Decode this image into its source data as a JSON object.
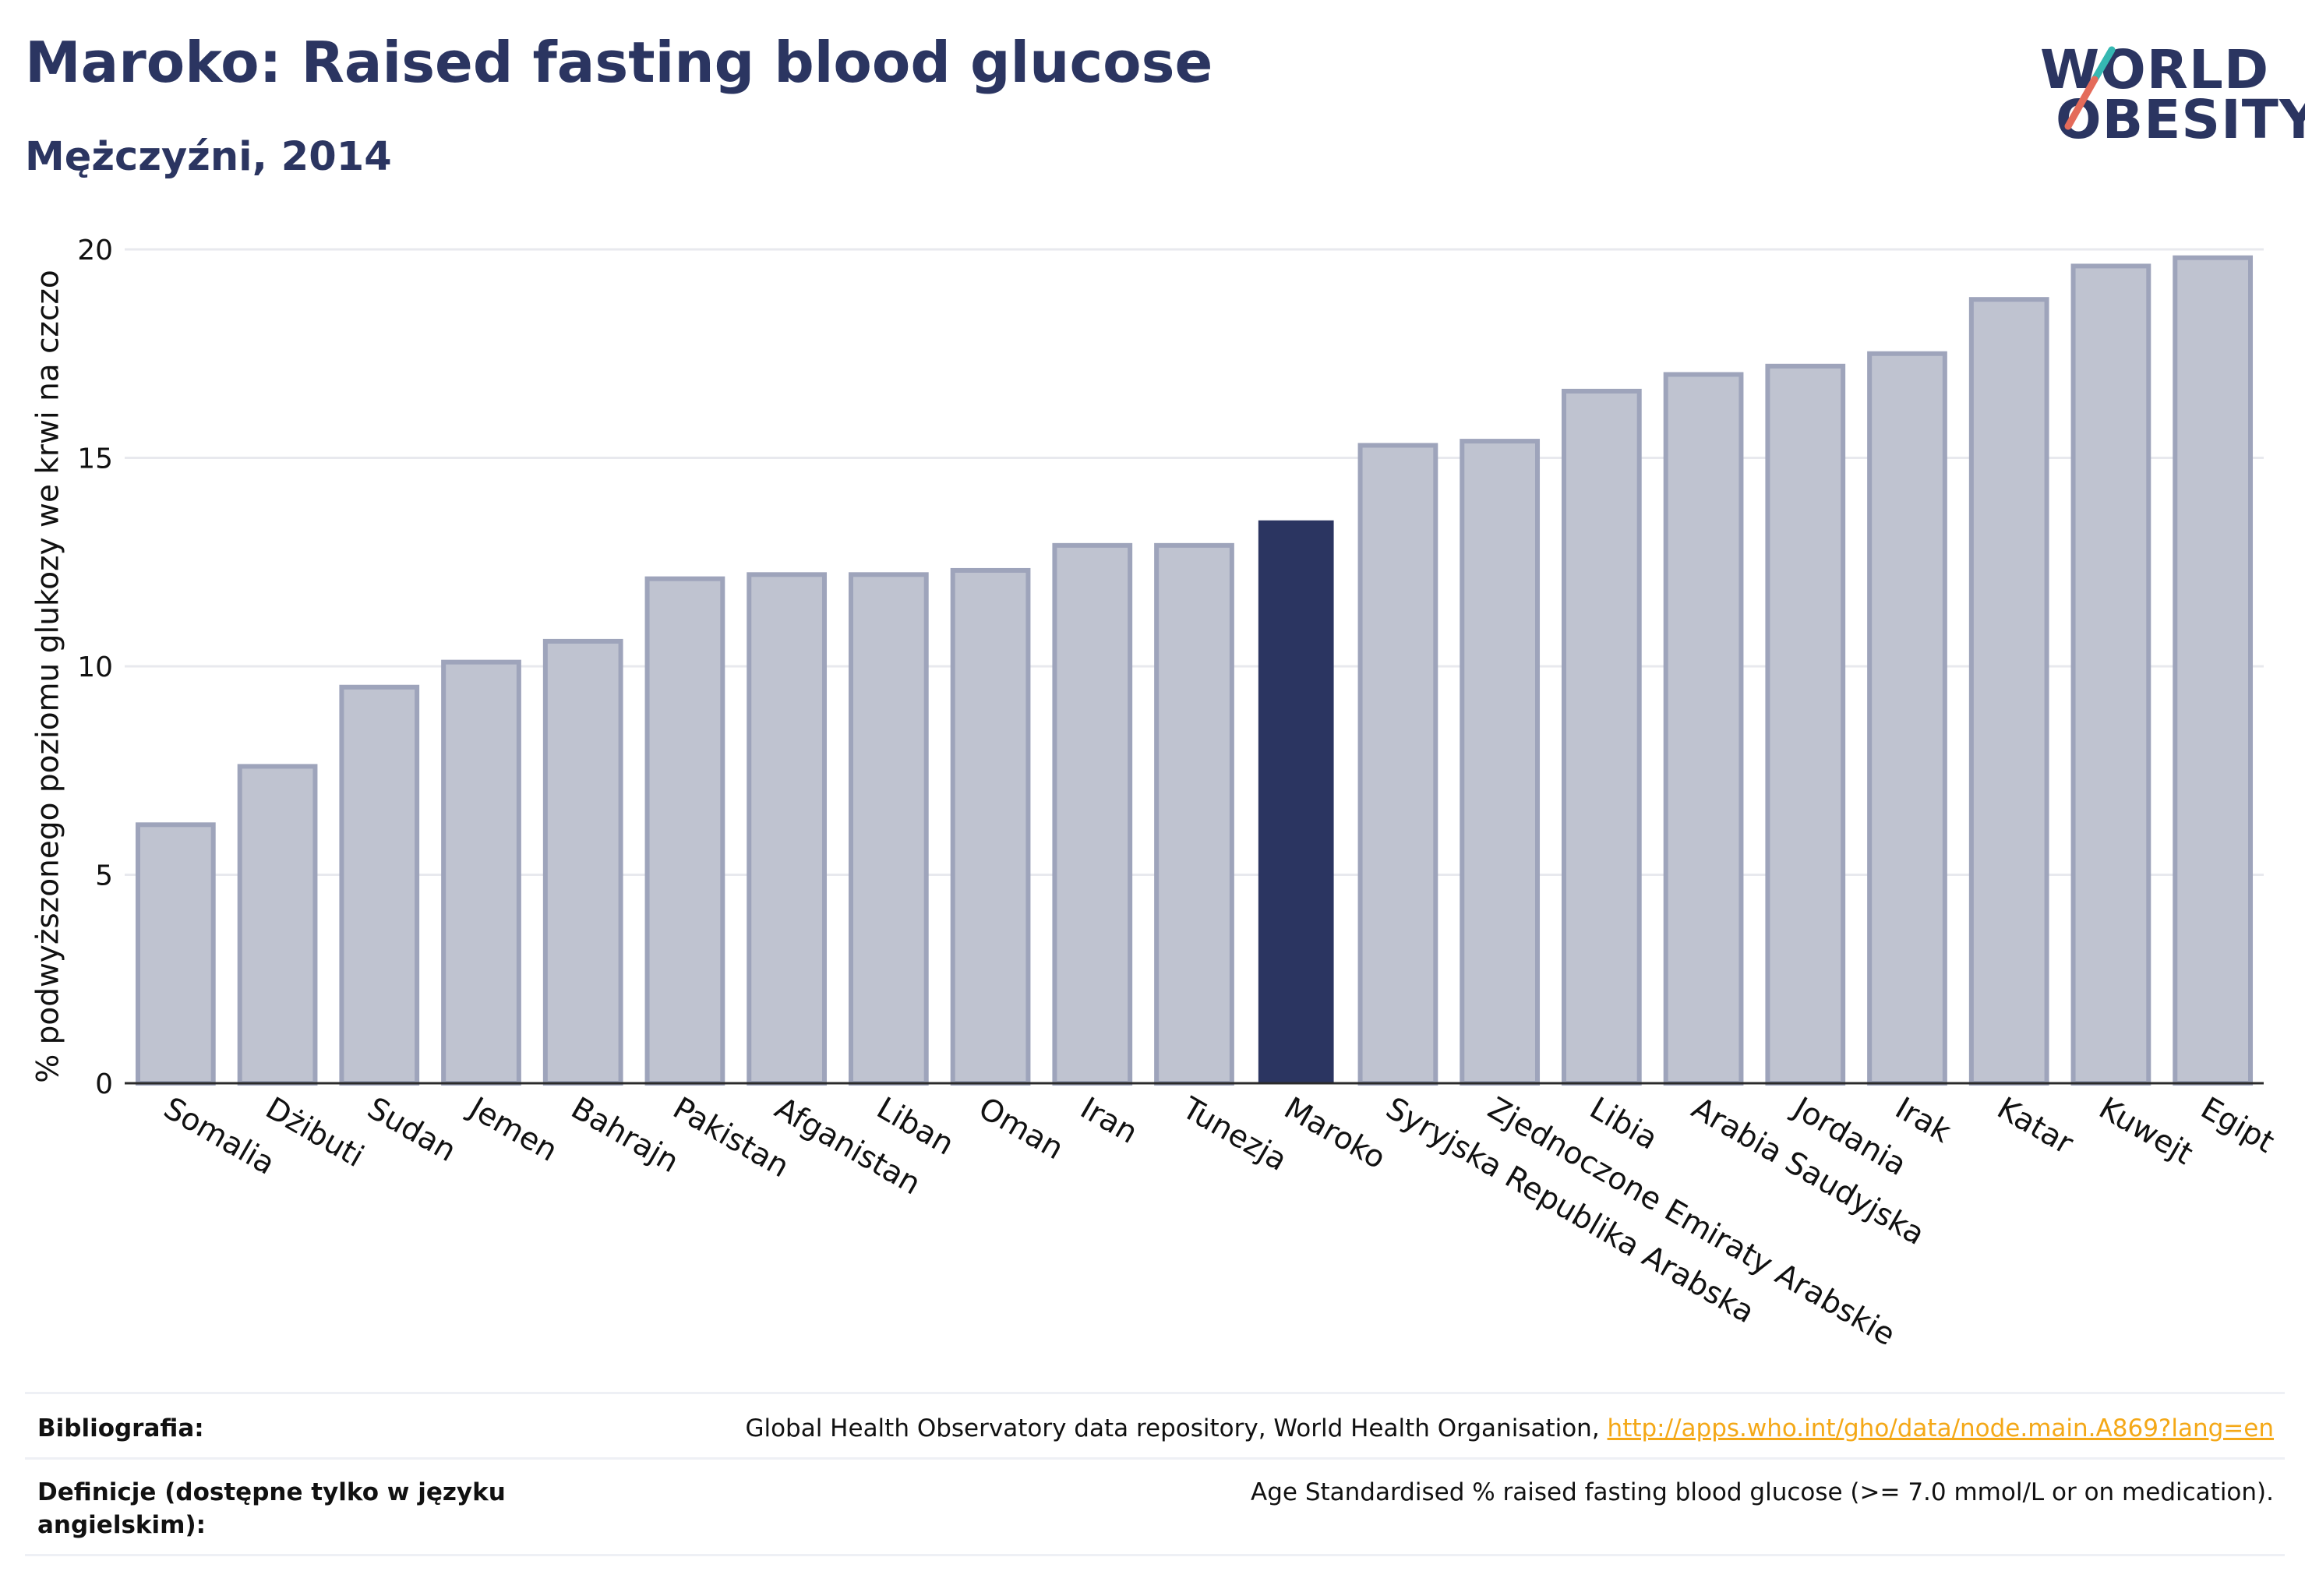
{
  "header": {
    "title": "Maroko: Raised fasting blood glucose",
    "subtitle": "Mężczyźni, 2014"
  },
  "logo": {
    "line1": "WORLD",
    "line2": "OBESITY"
  },
  "colors": {
    "highlight": "#2b3561",
    "bar": "#bfc3d0",
    "bar_border": "#9ea4bb",
    "grid": "#e8e9ee",
    "logo_slash_top": "#35b8b2",
    "logo_slash_bottom": "#e46b5a"
  },
  "chart_data": {
    "type": "bar",
    "title": "Maroko: Raised fasting blood glucose",
    "subtitle": "Mężczyźni, 2014",
    "ylabel": "% podwyższonego poziomu glukozy we krwi na czczo",
    "xlabel": "",
    "ylim": [
      0,
      20
    ],
    "yticks": [
      0,
      5,
      10,
      15,
      20
    ],
    "grid": true,
    "highlight": "Maroko",
    "categories": [
      "Somalia",
      "Dżibuti",
      "Sudan",
      "Jemen",
      "Bahrajn",
      "Pakistan",
      "Afganistan",
      "Liban",
      "Oman",
      "Iran",
      "Tunezja",
      "Maroko",
      "Syryjska Republika Arabska",
      "Zjednoczone Emiraty Arabskie",
      "Libia",
      "Arabia Saudyjska",
      "Jordania",
      "Irak",
      "Katar",
      "Kuwejt",
      "Egipt"
    ],
    "values": [
      6.2,
      7.6,
      9.5,
      10.1,
      10.6,
      12.1,
      12.2,
      12.2,
      12.3,
      12.9,
      12.9,
      13.5,
      15.3,
      15.4,
      16.6,
      17.0,
      17.2,
      17.5,
      18.8,
      19.6,
      19.8
    ]
  },
  "footer": {
    "bibliography_label": "Bibliografia:",
    "bibliography_text": "Global Health Observatory data repository, World Health Organisation, ",
    "bibliography_link": "http://apps.who.int/gho/data/node.main.A869?lang=en",
    "definitions_label": "Definicje (dostępne tylko w języku angielskim):",
    "definitions_text": "Age Standardised % raised fasting blood glucose (>= 7.0 mmol/L or on medication)."
  }
}
